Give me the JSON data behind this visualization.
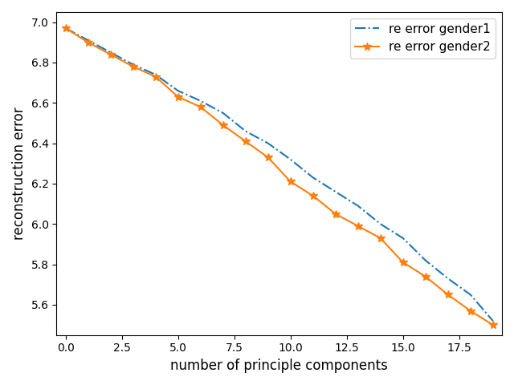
{
  "title": "",
  "xlabel": "number of principle components",
  "ylabel": "reconstruction error",
  "x": [
    0,
    1,
    2,
    3,
    4,
    5,
    6,
    7,
    8,
    9,
    10,
    11,
    12,
    13,
    14,
    15,
    16,
    17,
    18,
    19
  ],
  "gender1_y": [
    6.97,
    6.91,
    6.85,
    6.79,
    6.74,
    6.66,
    6.61,
    6.55,
    6.46,
    6.4,
    6.32,
    6.23,
    6.16,
    6.09,
    6.0,
    5.93,
    5.82,
    5.73,
    5.65,
    5.52
  ],
  "gender2_y": [
    6.97,
    6.9,
    6.84,
    6.78,
    6.73,
    6.63,
    6.58,
    6.49,
    6.41,
    6.33,
    6.21,
    6.14,
    6.05,
    5.99,
    5.93,
    5.81,
    5.74,
    5.65,
    5.57,
    5.5
  ],
  "gender1_label": "re error gender1",
  "gender2_label": "re error gender2",
  "gender1_color": "#1f77b4",
  "gender2_color": "#ff7f0e",
  "ylim_bottom": 5.45,
  "ylim_top": 7.05,
  "xlim_left": -0.4,
  "xlim_right": 19.4
}
